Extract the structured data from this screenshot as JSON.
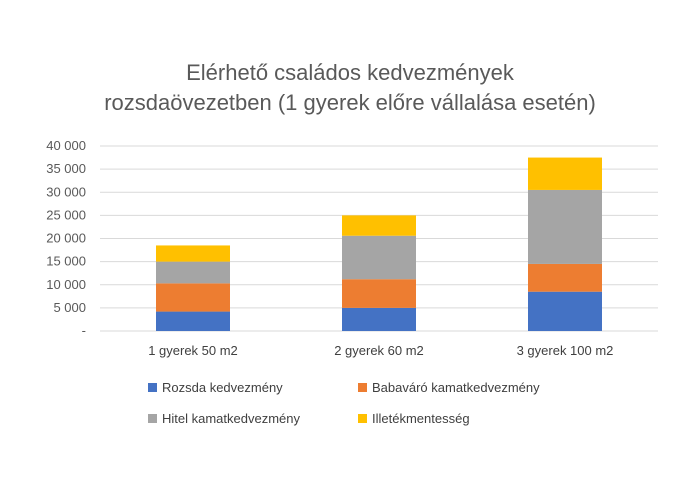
{
  "chart_data": {
    "type": "bar",
    "stacked": true,
    "title_lines": [
      "Elérhető családos kedvezmények",
      "rozsdaövezetben (1 gyerek előre vállalása esetén)"
    ],
    "categories": [
      "1 gyerek 50 m2",
      "2 gyerek 60 m2",
      "3 gyerek 100 m2"
    ],
    "series": [
      {
        "name": "Rozsda kedvezmény",
        "color": "#4472C4",
        "values": [
          4200,
          5000,
          8500
        ]
      },
      {
        "name": "Babaváró kamatkedvezmény",
        "color": "#ED7D31",
        "values": [
          6100,
          6200,
          6000
        ]
      },
      {
        "name": "Hitel kamatkedvezmény",
        "color": "#A5A5A5",
        "values": [
          4700,
          9400,
          16000
        ]
      },
      {
        "name": "Illetékmentesség",
        "color": "#FFC000",
        "values": [
          3500,
          4400,
          7000
        ]
      }
    ],
    "y_ticks": [
      0,
      5000,
      10000,
      15000,
      20000,
      25000,
      30000,
      35000,
      40000
    ],
    "y_tick_labels": [
      "-",
      "5 000",
      "10 000",
      "15 000",
      "20 000",
      "25 000",
      "30 000",
      "35 000",
      "40 000"
    ],
    "ylim": [
      0,
      40000
    ],
    "grid": true,
    "legend_position": "bottom"
  }
}
